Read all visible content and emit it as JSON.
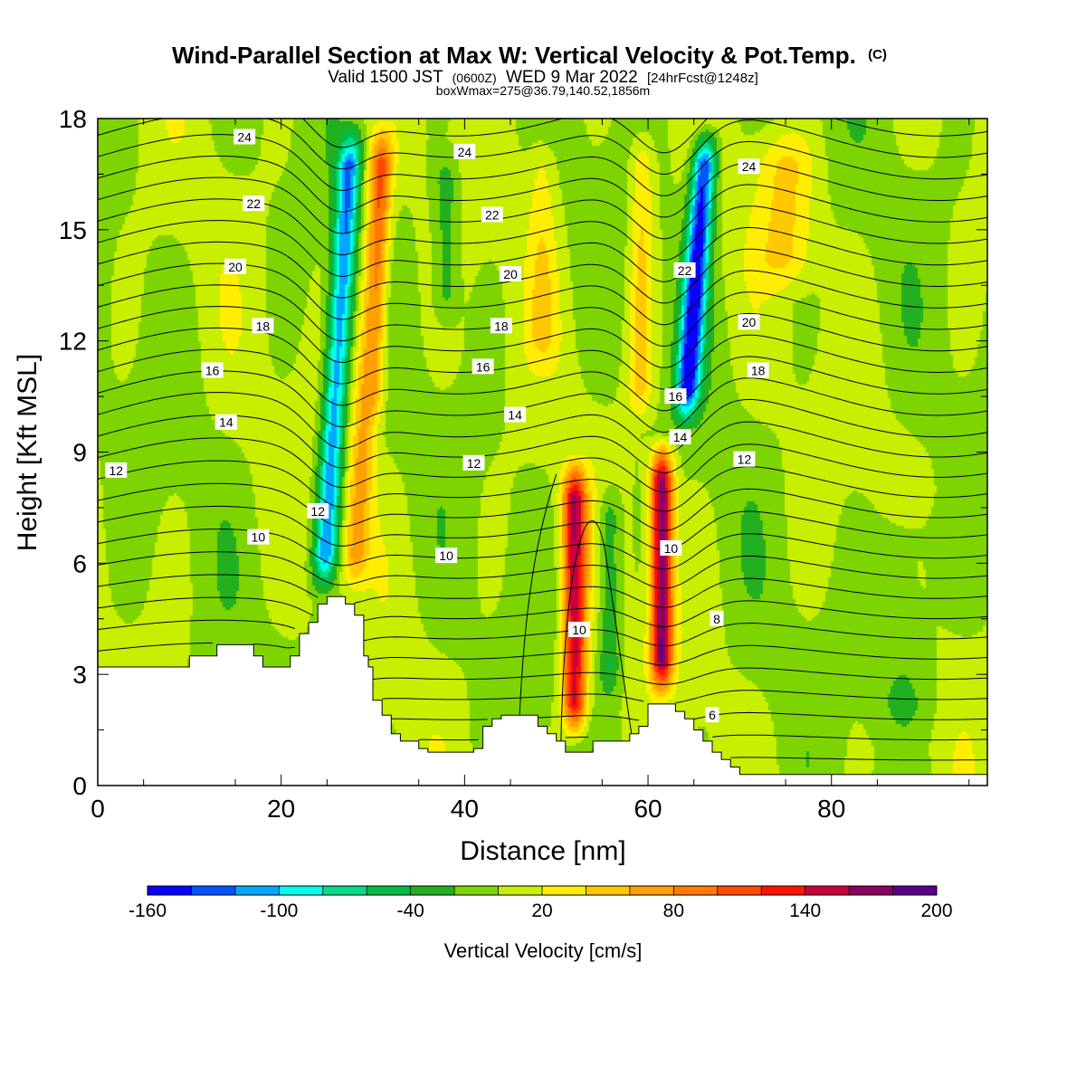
{
  "chart_data": {
    "type": "heatmap",
    "title": "Wind-Parallel Section at Max W: Vertical Velocity & Pot.Temp.",
    "title_mark": "(C)",
    "subtitle_parts": [
      "Valid 1500 JST",
      "(0600Z)",
      "WED 9 Mar 2022",
      "[24hrFcst@1248z]"
    ],
    "subtitle2": "boxWmax=275@36.79,140.52,1856m",
    "xlabel": "Distance [nm]",
    "ylabel": "Height [Kft MSL]",
    "xlim": [
      0,
      97
    ],
    "ylim": [
      0,
      18
    ],
    "x_ticks": [
      "0",
      "20",
      "40",
      "60",
      "80"
    ],
    "x_tick_values": [
      0,
      20,
      40,
      60,
      80
    ],
    "y_ticks": [
      "0",
      "3",
      "6",
      "9",
      "12",
      "15",
      "18"
    ],
    "y_tick_values": [
      0,
      3,
      6,
      9,
      12,
      15,
      18
    ],
    "colorbar": {
      "label": "Vertical Velocity [cm/s]",
      "bounds": [
        -160,
        -140,
        -120,
        -100,
        -80,
        -60,
        -40,
        -20,
        0,
        20,
        40,
        60,
        80,
        100,
        120,
        140,
        160,
        180,
        200
      ],
      "colors": [
        "#0a00ff",
        "#0055ff",
        "#00a8ff",
        "#00ffee",
        "#00dd88",
        "#00bb44",
        "#22b020",
        "#7ed400",
        "#c8ee00",
        "#ffee00",
        "#ffc800",
        "#ffa000",
        "#ff7a00",
        "#ff4800",
        "#ff1400",
        "#c80040",
        "#8c0060",
        "#5a008c"
      ],
      "tick_labels": [
        "-160",
        "-100",
        "-40",
        "20",
        "80",
        "140",
        "200"
      ],
      "tick_values": [
        -160,
        -100,
        -40,
        20,
        80,
        140,
        200
      ]
    },
    "w_features": [
      {
        "x": 24.5,
        "zb": 5.0,
        "zt": 18.0,
        "tilt": 0.25,
        "amp": -115,
        "width": 1.3
      },
      {
        "x": 27.8,
        "zb": 5.0,
        "zt": 18.0,
        "tilt": 0.25,
        "amp": 65,
        "width": 1.4
      },
      {
        "x": 29.8,
        "zb": 9.5,
        "zt": 18.0,
        "tilt": 0.1,
        "amp": 45,
        "width": 1.1
      },
      {
        "x": 52.0,
        "zb": 1.0,
        "zt": 9.0,
        "tilt": 0.0,
        "amp": 150,
        "width": 1.3
      },
      {
        "x": 55.8,
        "zb": 2.0,
        "zt": 8.5,
        "tilt": 0.0,
        "amp": -45,
        "width": 1.2
      },
      {
        "x": 61.5,
        "zb": 2.2,
        "zt": 9.5,
        "tilt": 0.0,
        "amp": 175,
        "width": 1.2
      },
      {
        "x": 62.6,
        "zb": 9.5,
        "zt": 18.0,
        "tilt": 0.3,
        "amp": -150,
        "width": 1.3
      },
      {
        "x": 58.8,
        "zb": 9.5,
        "zt": 18.0,
        "tilt": 0.05,
        "amp": 45,
        "width": 1.3
      },
      {
        "x": 48.5,
        "zb": 11.0,
        "zt": 18.0,
        "tilt": 0.0,
        "amp": 30,
        "width": 1.6
      },
      {
        "x": 38.0,
        "zb": 12.0,
        "zt": 17.5,
        "tilt": 0.0,
        "amp": -35,
        "width": 1.4
      },
      {
        "x": 75.0,
        "zb": 13.0,
        "zt": 18.0,
        "tilt": 0.0,
        "amp": 40,
        "width": 3.0
      },
      {
        "x": 88.0,
        "zb": 1.0,
        "zt": 8.0,
        "tilt": 0.0,
        "amp": -25,
        "width": 3.5
      }
    ],
    "terrain": [
      [
        0,
        3.2
      ],
      [
        10,
        3.2
      ],
      [
        10,
        3.5
      ],
      [
        13,
        3.5
      ],
      [
        13,
        3.8
      ],
      [
        17,
        3.8
      ],
      [
        17,
        3.5
      ],
      [
        18,
        3.5
      ],
      [
        18,
        3.2
      ],
      [
        21,
        3.2
      ],
      [
        21,
        3.5
      ],
      [
        22,
        3.5
      ],
      [
        22,
        4.1
      ],
      [
        23,
        4.1
      ],
      [
        23,
        4.4
      ],
      [
        24,
        4.4
      ],
      [
        24,
        4.9
      ],
      [
        25,
        4.9
      ],
      [
        25,
        5.1
      ],
      [
        27,
        5.1
      ],
      [
        27,
        4.9
      ],
      [
        28,
        4.9
      ],
      [
        28,
        4.6
      ],
      [
        29,
        4.6
      ],
      [
        29,
        3.5
      ],
      [
        29.5,
        3.5
      ],
      [
        29.5,
        3.2
      ],
      [
        30,
        3.2
      ],
      [
        30,
        2.3
      ],
      [
        31,
        2.3
      ],
      [
        31,
        1.9
      ],
      [
        32,
        1.9
      ],
      [
        32,
        1.4
      ],
      [
        33,
        1.4
      ],
      [
        33,
        1.2
      ],
      [
        35,
        1.2
      ],
      [
        35,
        1.0
      ],
      [
        36,
        1.0
      ],
      [
        36,
        0.9
      ],
      [
        41,
        0.9
      ],
      [
        41,
        1.0
      ],
      [
        42,
        1.0
      ],
      [
        42,
        1.6
      ],
      [
        43,
        1.6
      ],
      [
        43,
        1.8
      ],
      [
        44,
        1.8
      ],
      [
        44,
        1.9
      ],
      [
        48,
        1.9
      ],
      [
        48,
        1.6
      ],
      [
        49,
        1.6
      ],
      [
        49,
        1.4
      ],
      [
        50,
        1.4
      ],
      [
        50,
        1.2
      ],
      [
        51,
        1.2
      ],
      [
        51,
        0.9
      ],
      [
        54,
        0.9
      ],
      [
        54,
        1.2
      ],
      [
        58,
        1.2
      ],
      [
        58,
        1.4
      ],
      [
        59,
        1.4
      ],
      [
        59,
        1.6
      ],
      [
        60,
        1.6
      ],
      [
        60,
        2.2
      ],
      [
        63,
        2.2
      ],
      [
        63,
        2.0
      ],
      [
        64,
        2.0
      ],
      [
        64,
        1.8
      ],
      [
        65,
        1.8
      ],
      [
        65,
        1.5
      ],
      [
        66,
        1.5
      ],
      [
        66,
        1.2
      ],
      [
        67,
        1.2
      ],
      [
        67,
        0.9
      ],
      [
        68,
        0.9
      ],
      [
        68,
        0.7
      ],
      [
        69,
        0.7
      ],
      [
        69,
        0.5
      ],
      [
        70,
        0.5
      ],
      [
        70,
        0.3
      ],
      [
        97,
        0.3
      ]
    ],
    "theta_contour_labels": [
      {
        "text": "24",
        "x": 16,
        "z": 17.5
      },
      {
        "text": "24",
        "x": 40,
        "z": 17.1
      },
      {
        "text": "24",
        "x": 71,
        "z": 16.7
      },
      {
        "text": "22",
        "x": 17,
        "z": 15.7
      },
      {
        "text": "22",
        "x": 43,
        "z": 15.4
      },
      {
        "text": "22",
        "x": 64,
        "z": 13.9
      },
      {
        "text": "20",
        "x": 15,
        "z": 14.0
      },
      {
        "text": "20",
        "x": 45,
        "z": 13.8
      },
      {
        "text": "20",
        "x": 71,
        "z": 12.5
      },
      {
        "text": "18",
        "x": 18,
        "z": 12.4
      },
      {
        "text": "18",
        "x": 44,
        "z": 12.4
      },
      {
        "text": "18",
        "x": 72,
        "z": 11.2
      },
      {
        "text": "16",
        "x": 12.5,
        "z": 11.2
      },
      {
        "text": "16",
        "x": 42,
        "z": 11.3
      },
      {
        "text": "16",
        "x": 63,
        "z": 10.5
      },
      {
        "text": "14",
        "x": 14,
        "z": 9.8
      },
      {
        "text": "14",
        "x": 45.5,
        "z": 10.0
      },
      {
        "text": "14",
        "x": 63.5,
        "z": 9.4
      },
      {
        "text": "12",
        "x": 2,
        "z": 8.5
      },
      {
        "text": "12",
        "x": 41,
        "z": 8.7
      },
      {
        "text": "12",
        "x": 70.5,
        "z": 8.8
      },
      {
        "text": "12",
        "x": 24,
        "z": 7.4
      },
      {
        "text": "10",
        "x": 17.5,
        "z": 6.7
      },
      {
        "text": "10",
        "x": 38,
        "z": 6.2
      },
      {
        "text": "10",
        "x": 52.5,
        "z": 4.2
      },
      {
        "text": "10",
        "x": 62.5,
        "z": 6.4
      },
      {
        "text": "8",
        "x": 67.5,
        "z": 4.5
      },
      {
        "text": "6",
        "x": 67,
        "z": 1.9
      }
    ]
  }
}
